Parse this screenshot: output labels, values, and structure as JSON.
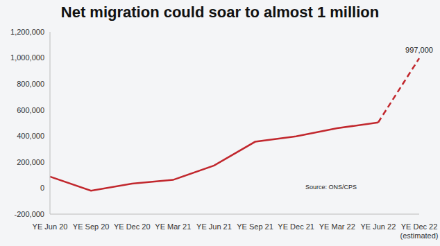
{
  "chart_data": {
    "type": "line",
    "title": "Net migration could soar to almost 1 million",
    "categories": [
      "YE Jun 20",
      "YE Sep 20",
      "YE Dec 20",
      "YE Mar 21",
      "YE Jun 21",
      "YE Sep 21",
      "YE Dec 21",
      "YE Mar 22",
      "YE Jun 22",
      "YE Dec 22 (estimated)"
    ],
    "series": [
      {
        "color": "#c1272d",
        "line_style": "solid",
        "values": [
          88000,
          -20000,
          34000,
          63000,
          173000,
          356000,
          398000,
          460000,
          504000,
          null
        ]
      },
      {
        "color": "#c1272d",
        "line_style": "dashed",
        "values": [
          null,
          null,
          null,
          null,
          null,
          null,
          null,
          null,
          504000,
          997000
        ]
      }
    ],
    "ylim": [
      -200000,
      1200000
    ],
    "yticks": [
      {
        "value": -200000,
        "label": "-200,000"
      },
      0,
      {
        "value": 200000,
        "label": "200,000"
      },
      {
        "value": 400000,
        "label": "400,000"
      },
      {
        "value": 600000,
        "label": "600,000"
      },
      {
        "value": 800000,
        "label": "800,000"
      },
      {
        "value": 1000000,
        "label": "1,000,000"
      },
      {
        "value": 1200000,
        "label": "1,200,000"
      }
    ],
    "grid": false,
    "annotations": [
      {
        "text": "997,000",
        "x": "YE Dec 22 (estimated)",
        "y": 997000
      }
    ],
    "source": "Source: ONS/CPS"
  }
}
